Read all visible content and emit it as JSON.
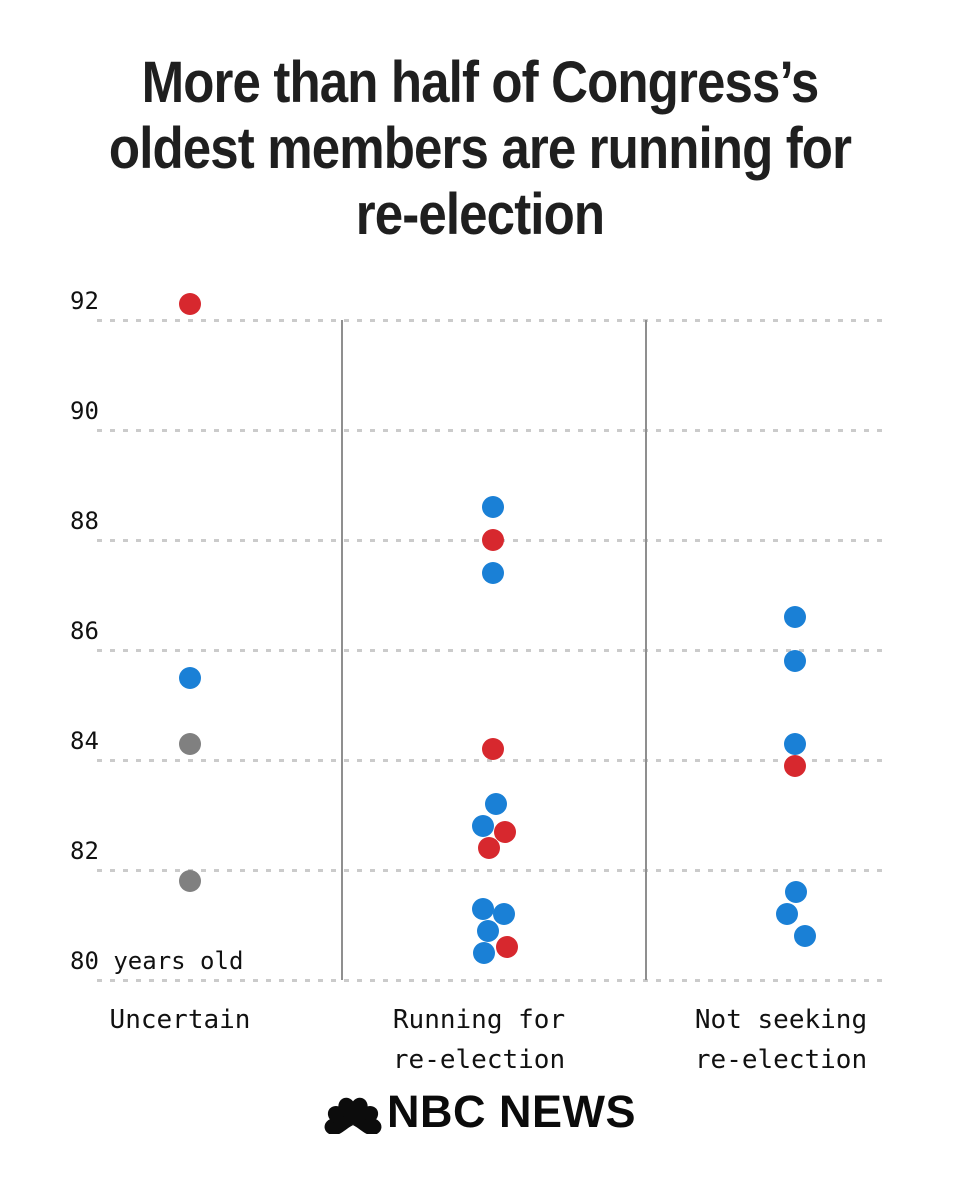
{
  "title": "More than half of Congress’s oldest members are running for re-election",
  "title_lines": [
    "More than half of Congress’s",
    "oldest members are running for",
    "re-election"
  ],
  "logo": {
    "text": "NBC NEWS",
    "icon": "nbc-peacock-icon"
  },
  "chart_data": {
    "type": "scatter",
    "subtype": "strip-dot-plot",
    "title": "More than half of Congress’s oldest members are running for re-election",
    "ylabel": "age in years",
    "ylim": [
      79.6,
      92.6
    ],
    "grid": "horizontal dashed lines every 2 years",
    "legend": "none (color encodes party: red, blue, gray)",
    "colors": {
      "red": "#d7282e",
      "blue": "#1a80d6",
      "gray": "#808080"
    },
    "y_ticks": [
      {
        "age": 92,
        "label": "92"
      },
      {
        "age": 90,
        "label": "90"
      },
      {
        "age": 88,
        "label": "88"
      },
      {
        "age": 86,
        "label": "86"
      },
      {
        "age": 84,
        "label": "84"
      },
      {
        "age": 82,
        "label": "82"
      },
      {
        "age": 80,
        "label": "80 years old"
      }
    ],
    "categories": [
      {
        "label": "Uncertain",
        "label_lines": [
          "Uncertain"
        ],
        "points": [
          {
            "age": 92.3,
            "color": "red",
            "offset": 0
          },
          {
            "age": 85.5,
            "color": "blue",
            "offset": 0
          },
          {
            "age": 84.3,
            "color": "gray",
            "offset": 0
          },
          {
            "age": 81.8,
            "color": "gray",
            "offset": 0
          }
        ]
      },
      {
        "label": "Running for re-election",
        "label_lines": [
          "Running for",
          "re-election"
        ],
        "points": [
          {
            "age": 88.6,
            "color": "blue",
            "offset": 0
          },
          {
            "age": 88.0,
            "color": "red",
            "offset": 0
          },
          {
            "age": 87.4,
            "color": "blue",
            "offset": 0
          },
          {
            "age": 84.2,
            "color": "red",
            "offset": 0
          },
          {
            "age": 83.2,
            "color": "blue",
            "offset": 3
          },
          {
            "age": 82.8,
            "color": "blue",
            "offset": -10
          },
          {
            "age": 82.7,
            "color": "red",
            "offset": 12
          },
          {
            "age": 82.4,
            "color": "red",
            "offset": -4
          },
          {
            "age": 81.3,
            "color": "blue",
            "offset": -10
          },
          {
            "age": 81.2,
            "color": "blue",
            "offset": 11
          },
          {
            "age": 80.9,
            "color": "blue",
            "offset": -5
          },
          {
            "age": 80.6,
            "color": "red",
            "offset": 14
          },
          {
            "age": 80.5,
            "color": "blue",
            "offset": -9
          }
        ]
      },
      {
        "label": "Not seeking re-election",
        "label_lines": [
          "Not seeking",
          "re-election"
        ],
        "points": [
          {
            "age": 86.6,
            "color": "blue",
            "offset": 0
          },
          {
            "age": 85.8,
            "color": "blue",
            "offset": 0
          },
          {
            "age": 84.3,
            "color": "blue",
            "offset": 0
          },
          {
            "age": 83.9,
            "color": "red",
            "offset": 0
          },
          {
            "age": 81.6,
            "color": "blue",
            "offset": 1
          },
          {
            "age": 81.2,
            "color": "blue",
            "offset": -8
          },
          {
            "age": 80.8,
            "color": "blue",
            "offset": 10
          }
        ]
      }
    ]
  }
}
